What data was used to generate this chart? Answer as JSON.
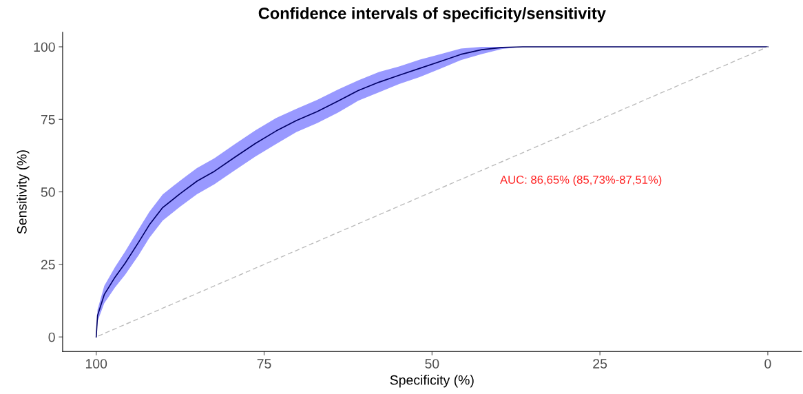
{
  "chart_data": {
    "type": "line",
    "title": "Confidence intervals of specificity/sensitivity",
    "xlabel": "Specificity (%)",
    "ylabel": "Sensitivity (%)",
    "xlim": [
      105,
      -5
    ],
    "ylim": [
      -5,
      105
    ],
    "xticks": [
      100,
      75,
      50,
      25,
      0
    ],
    "yticks": [
      0,
      25,
      50,
      75,
      100
    ],
    "grid": false,
    "legend": false,
    "series": [
      {
        "color": "#000066",
        "x": [
          100,
          99.8,
          98.8,
          97.2,
          95.7,
          93.7,
          92.1,
          90.1,
          87.5,
          85,
          82.4,
          79.4,
          76.3,
          73.2,
          70.2,
          67.1,
          64,
          61,
          57.9,
          54.9,
          51.8,
          48.7,
          45.7,
          42.6,
          39.5,
          36.5,
          0
        ],
        "values": [
          0,
          7.4,
          14.6,
          20.6,
          25.4,
          32.6,
          38.6,
          44.6,
          49.4,
          53.7,
          57.1,
          61.9,
          66.7,
          71,
          74.6,
          77.7,
          81.3,
          84.9,
          87.8,
          90.2,
          92.6,
          95,
          97.4,
          99,
          99.8,
          100,
          100
        ],
        "lower": [
          0,
          5.4,
          11.6,
          17.1,
          21.4,
          28.1,
          34.1,
          40.1,
          44.9,
          49.2,
          52.6,
          57.4,
          62.2,
          66.5,
          70.6,
          73.7,
          77.3,
          81.4,
          84.3,
          87.2,
          89.6,
          92.5,
          95.4,
          97.5,
          99.3,
          100,
          100
        ],
        "upper": [
          0,
          9.4,
          17.6,
          24.1,
          29.4,
          37.1,
          43.1,
          49.1,
          53.9,
          58.2,
          61.6,
          66.4,
          71.2,
          75.5,
          78.6,
          81.7,
          85.3,
          88.4,
          91.3,
          93.2,
          95.6,
          97.5,
          99.4,
          100,
          100,
          100,
          100
        ]
      },
      {
        "color": "#bbbbbb",
        "line_style": "dashed",
        "x": [
          100,
          0
        ],
        "values": [
          0,
          100
        ]
      }
    ],
    "annotations": [
      "AUC: 86,65% (85,73%-87,51%)"
    ]
  }
}
